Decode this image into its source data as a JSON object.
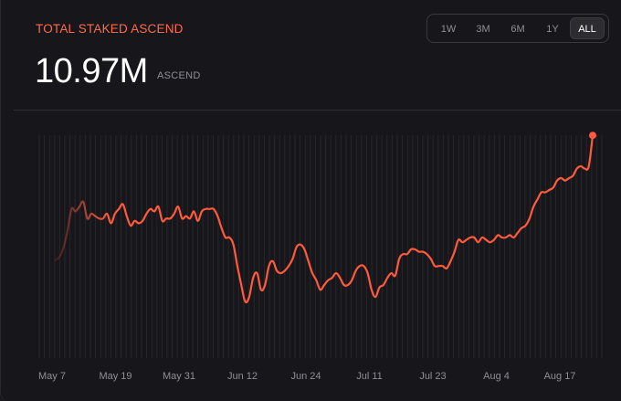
{
  "header": {
    "title": "TOTAL STAKED ASCEND",
    "value": "10.97M",
    "unit": "ASCEND"
  },
  "timeframes": [
    {
      "label": "1W",
      "active": false
    },
    {
      "label": "3M",
      "active": false
    },
    {
      "label": "6M",
      "active": false
    },
    {
      "label": "1Y",
      "active": false
    },
    {
      "label": "ALL",
      "active": true
    }
  ],
  "colors": {
    "accent": "#ff5a3c",
    "background": "#17171b",
    "gridline": "#26262b",
    "text_muted": "#8e8e94"
  },
  "chart_data": {
    "type": "line",
    "title": "",
    "xlabel": "",
    "ylabel": "",
    "x_tick_labels": [
      "May 7",
      "May 19",
      "May 31",
      "Jun 12",
      "Jun 24",
      "Jul 11",
      "Jul 23",
      "Aug 4",
      "Aug 17"
    ],
    "grid": "vertical",
    "ylim": [
      0,
      100
    ],
    "series": [
      {
        "values": [
          40.5,
          42,
          46,
          53,
          62,
          61,
          63,
          65,
          58,
          60,
          59,
          58,
          58,
          60,
          56,
          60,
          62,
          64,
          59,
          55,
          57,
          56,
          57,
          60,
          62,
          61,
          63,
          57,
          58,
          58,
          60,
          63,
          58,
          59,
          58,
          61,
          57,
          61,
          62,
          62,
          62,
          59,
          54,
          50,
          50,
          47,
          38,
          30,
          23,
          25,
          33,
          35,
          28,
          30,
          38,
          40,
          36,
          35,
          36,
          38,
          41,
          46,
          47,
          45,
          40,
          35,
          32,
          28,
          30,
          32,
          33,
          35,
          33,
          30,
          30,
          32,
          36,
          38,
          38,
          35,
          28,
          25,
          29,
          30,
          33,
          35,
          34,
          41,
          43,
          43,
          45,
          45,
          44,
          44,
          43,
          41,
          38,
          38,
          38,
          37,
          40,
          44,
          49,
          48,
          49,
          50,
          50,
          48,
          50,
          49,
          48,
          49,
          51,
          50,
          50,
          51,
          50,
          52,
          54,
          55,
          58,
          63,
          66,
          69,
          69,
          70,
          71,
          74,
          75,
          74,
          75,
          76,
          79,
          80,
          79,
          80,
          93
        ]
      }
    ],
    "end_marker": true
  }
}
